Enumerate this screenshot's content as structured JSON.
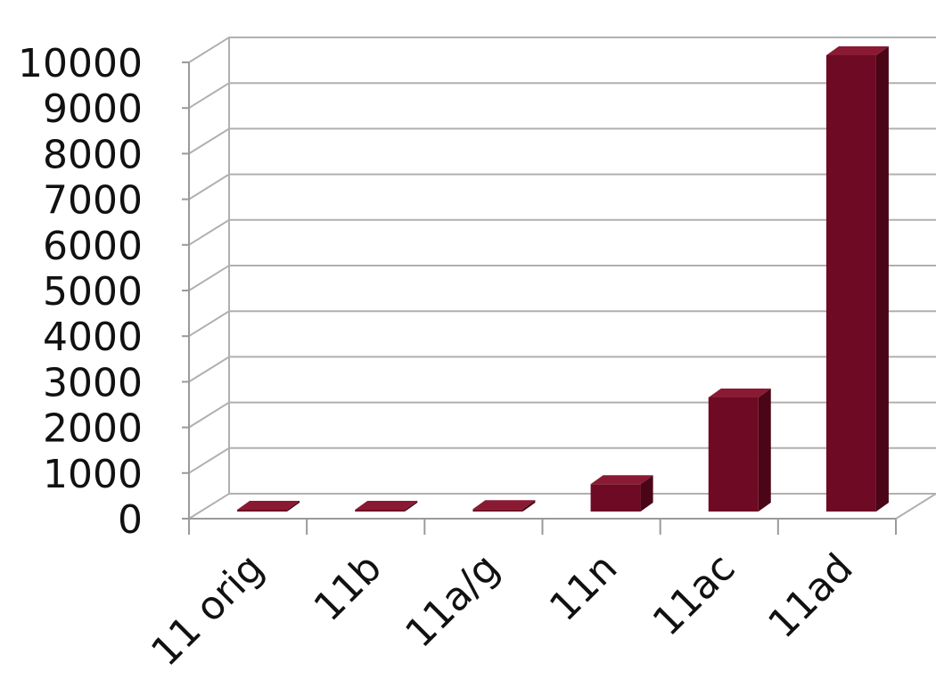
{
  "chart_data": {
    "type": "bar",
    "style": "3d-column",
    "title": "",
    "xlabel": "",
    "ylabel": "",
    "categories": [
      "11 orig",
      "11b",
      "11a/g",
      "11n",
      "11ac",
      "11ad"
    ],
    "values": [
      2,
      11,
      54,
      600,
      2500,
      10000
    ],
    "ylim": [
      0,
      10000
    ],
    "y_ticks": [
      0,
      1000,
      2000,
      3000,
      4000,
      5000,
      6000,
      7000,
      8000,
      9000,
      10000
    ],
    "y_tick_labels": [
      "0",
      "1000",
      "2000",
      "3000",
      "4000",
      "5000",
      "6000",
      "7000",
      "8000",
      "9000",
      "10000"
    ],
    "grid": true,
    "legend": "none",
    "colors": {
      "bar_front": "#6e0a23",
      "bar_side": "#4a0517",
      "bar_top": "#8a1a33",
      "grid": "#b0b0b0",
      "axis": "#9a9a9a"
    }
  }
}
